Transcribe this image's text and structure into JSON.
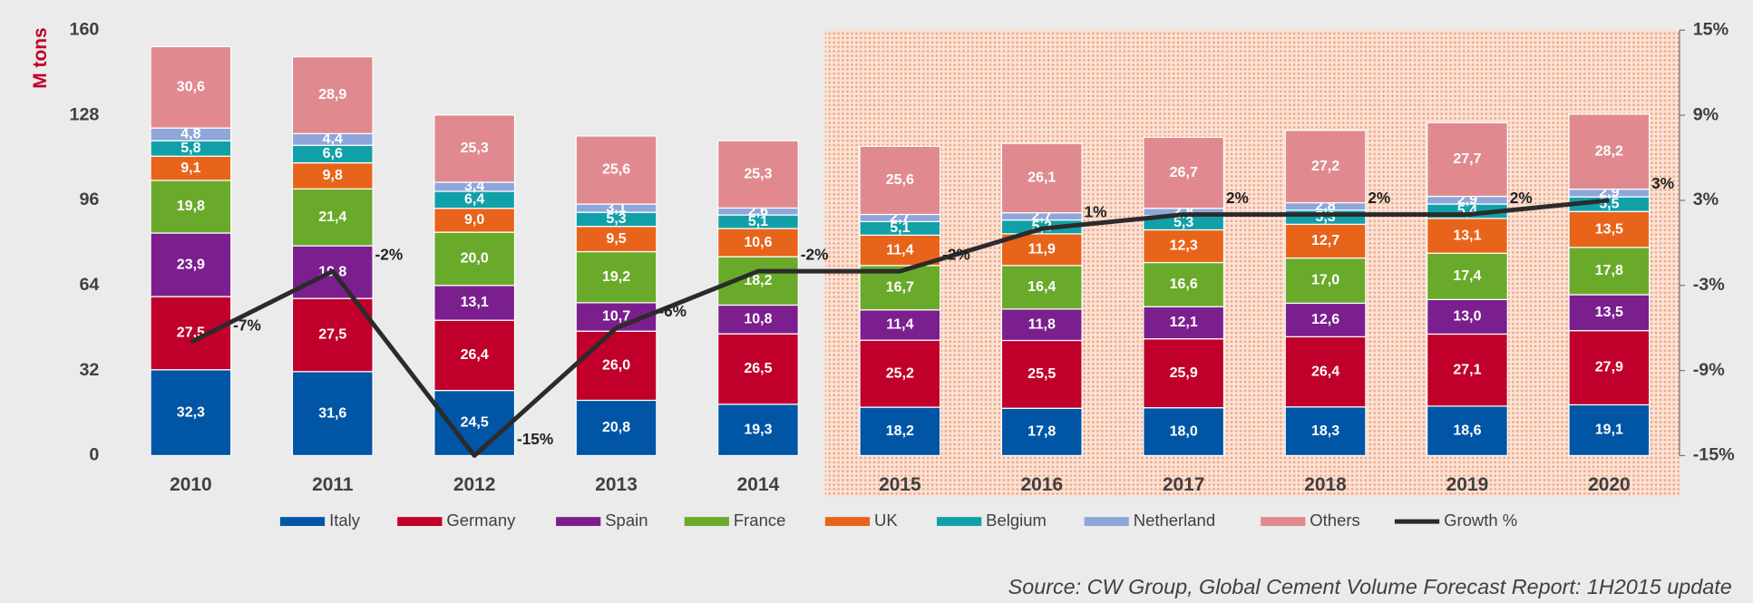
{
  "chart_data": {
    "type": "bar",
    "stacked": true,
    "y_label": "M tons",
    "source": "Source: CW Group, Global Cement Volume Forecast Report: 1H2015 update",
    "categories": [
      "2010",
      "2011",
      "2012",
      "2013",
      "2014",
      "2015",
      "2016",
      "2017",
      "2018",
      "2019",
      "2020"
    ],
    "ylim": [
      0,
      160
    ],
    "yticks": [
      0,
      32,
      64,
      96,
      128,
      160
    ],
    "y2lim": [
      -15,
      15
    ],
    "y2ticks": [
      {
        "value": -15,
        "label": "-15%"
      },
      {
        "value": -9,
        "label": "-9%"
      },
      {
        "value": -3,
        "label": "-3%"
      },
      {
        "value": 3,
        "label": "3%"
      },
      {
        "value": 9,
        "label": "9%"
      },
      {
        "value": 15,
        "label": "15%"
      }
    ],
    "series": [
      {
        "name": "Italy",
        "color": "#0055a5",
        "values": [
          32.3,
          31.6,
          24.5,
          20.8,
          19.3,
          18.2,
          17.8,
          18.0,
          18.3,
          18.6,
          19.1
        ],
        "value_labels": [
          "32,3",
          "31,6",
          "24,5",
          "20,8",
          "19,3",
          "18,2",
          "17,8",
          "18,0",
          "18,3",
          "18,6",
          "19,1"
        ]
      },
      {
        "name": "Germany",
        "color": "#c0002a",
        "values": [
          27.5,
          27.5,
          26.4,
          26.0,
          26.5,
          25.2,
          25.5,
          25.9,
          26.4,
          27.1,
          27.9
        ],
        "value_labels": [
          "27,5",
          "27,5",
          "26,4",
          "26,0",
          "26,5",
          "25,2",
          "25,5",
          "25,9",
          "26,4",
          "27,1",
          "27,9"
        ]
      },
      {
        "name": "Spain",
        "color": "#7b1f8f",
        "values": [
          23.9,
          19.8,
          13.1,
          10.7,
          10.8,
          11.4,
          11.8,
          12.1,
          12.6,
          13.0,
          13.5
        ],
        "value_labels": [
          "23,9",
          "19,8",
          "13,1",
          "10,7",
          "10,8",
          "11,4",
          "11,8",
          "12,1",
          "12,6",
          "13,0",
          "13,5"
        ]
      },
      {
        "name": "France",
        "color": "#6aaa2a",
        "values": [
          19.8,
          21.4,
          20.0,
          19.2,
          18.2,
          16.7,
          16.4,
          16.6,
          17.0,
          17.4,
          17.8
        ],
        "value_labels": [
          "19,8",
          "21,4",
          "20,0",
          "19,2",
          "18,2",
          "16,7",
          "16,4",
          "16,6",
          "17,0",
          "17,4",
          "17,8"
        ]
      },
      {
        "name": "UK",
        "color": "#e8641a",
        "values": [
          9.1,
          9.8,
          9.0,
          9.5,
          10.6,
          11.4,
          11.9,
          12.3,
          12.7,
          13.1,
          13.5
        ],
        "value_labels": [
          "9,1",
          "9,8",
          "9,0",
          "9,5",
          "10,6",
          "11,4",
          "11,9",
          "12,3",
          "12,7",
          "13,1",
          "13,5"
        ]
      },
      {
        "name": "Belgium",
        "color": "#12a0a8",
        "values": [
          5.8,
          6.6,
          6.4,
          5.3,
          5.1,
          5.1,
          5.2,
          5.3,
          5.3,
          5.4,
          5.5
        ],
        "value_labels": [
          "5,8",
          "6,6",
          "6,4",
          "5,3",
          "5,1",
          "5,1",
          "5,2",
          "5,3",
          "5,3",
          "5,4",
          "5,5"
        ]
      },
      {
        "name": "Netherland",
        "color": "#8fa6da",
        "values": [
          4.8,
          4.4,
          3.4,
          3.1,
          2.6,
          2.7,
          2.7,
          2.8,
          2.8,
          2.9,
          2.9
        ],
        "value_labels": [
          "4,8",
          "4,4",
          "3,4",
          "3,1",
          "2,6",
          "2,7",
          "2,7",
          "2,8",
          "2,8",
          "2,9",
          "2,9"
        ]
      },
      {
        "name": "Others",
        "color": "#e08a90",
        "values": [
          30.6,
          28.9,
          25.3,
          25.6,
          25.3,
          25.6,
          26.1,
          26.7,
          27.2,
          27.7,
          28.2
        ],
        "value_labels": [
          "30,6",
          "28,9",
          "25,3",
          "25,6",
          "25,3",
          "25,6",
          "26,1",
          "26,7",
          "27,2",
          "27,7",
          "28,2"
        ]
      },
      {
        "name": "Growth %",
        "type": "line",
        "axis": "y2",
        "color": "#2b2b2b",
        "values": [
          -7,
          -2,
          -15,
          -6,
          -2,
          -2,
          1,
          2,
          2,
          2,
          3
        ],
        "value_labels": [
          "-7%",
          "-2%",
          "-15%",
          "-6%",
          "-2%",
          "-2%",
          "1%",
          "2%",
          "2%",
          "2%",
          "3%"
        ]
      }
    ]
  }
}
